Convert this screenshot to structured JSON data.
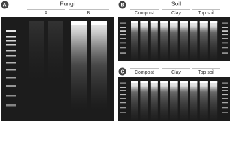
{
  "panels": [
    {
      "label": "A",
      "title": "Fungi",
      "groups": [
        "A",
        "B"
      ]
    },
    {
      "label": "B",
      "title": "Soil",
      "groups": [
        "Compost",
        "Clay",
        "Top soil"
      ]
    },
    {
      "label": "C",
      "groups": [
        "Compost",
        "Clay",
        "Top soil"
      ]
    }
  ]
}
